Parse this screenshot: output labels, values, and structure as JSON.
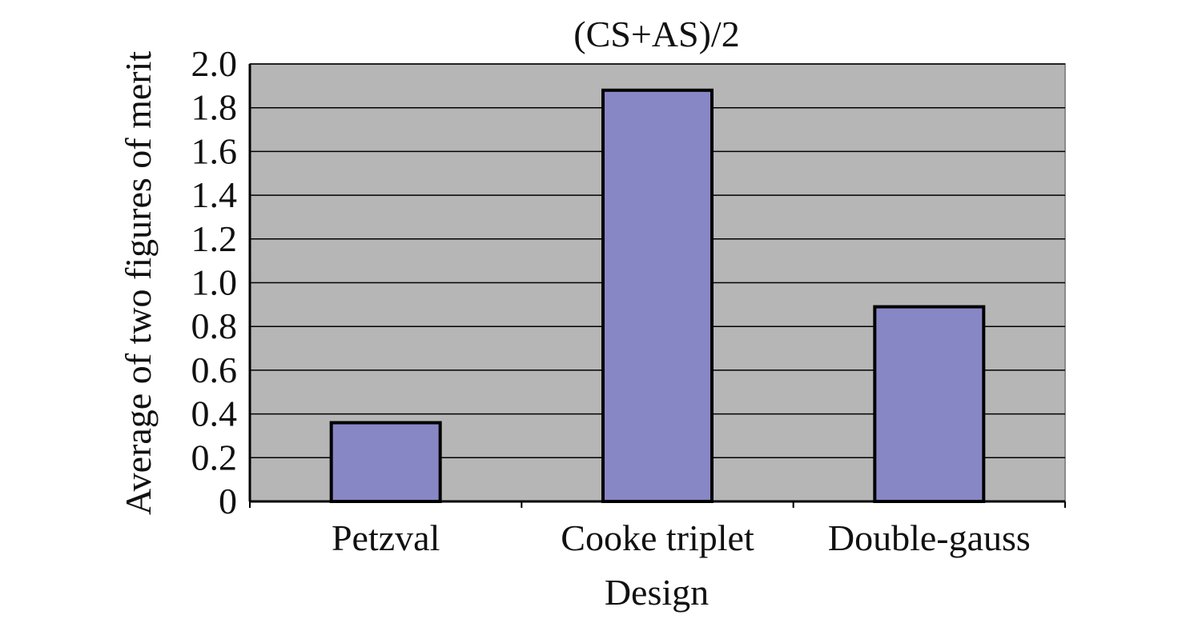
{
  "chart_data": {
    "type": "bar",
    "title": "(CS+AS)/2",
    "xlabel": "Design",
    "ylabel": "Average of two figures of merit",
    "categories": [
      "Petzval",
      "Cooke triplet",
      "Double-gauss"
    ],
    "values": [
      0.36,
      1.88,
      0.89
    ],
    "ylim": [
      0,
      2.0
    ],
    "yticks": [
      0,
      0.2,
      0.4,
      0.6,
      0.8,
      1.0,
      1.2,
      1.4,
      1.6,
      1.8,
      2.0
    ],
    "ytick_labels": [
      "0",
      "0.2",
      "0.4",
      "0.6",
      "0.8",
      "1.0",
      "1.2",
      "1.4",
      "1.6",
      "1.8",
      "2.0"
    ],
    "grid": true,
    "legend": "none",
    "colors": {
      "plot_background": "#b7b6b7",
      "bar_fill": "#8887c5",
      "bar_stroke": "#000000",
      "gridline": "#000000"
    }
  }
}
